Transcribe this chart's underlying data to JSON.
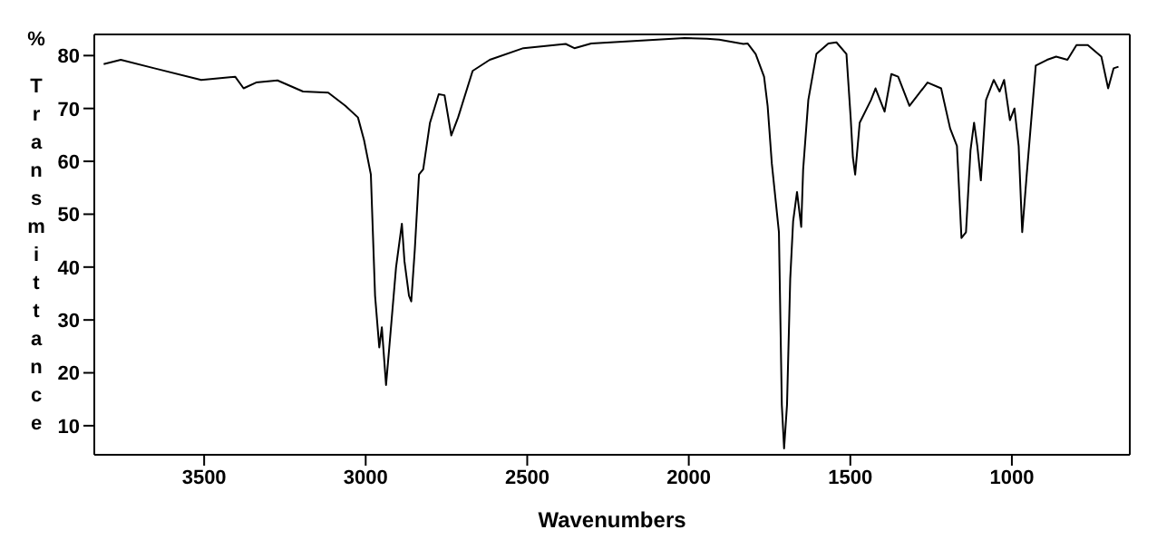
{
  "chart_data": {
    "type": "line",
    "xlabel": "Wavenumbers",
    "ylabel": "% Transmittance",
    "x": [
      3811,
      3758,
      3654,
      3509,
      3404,
      3378,
      3339,
      3273,
      3194,
      3116,
      3063,
      3024,
      3005,
      2984,
      2971,
      2958,
      2950,
      2937,
      2927,
      2906,
      2888,
      2880,
      2866,
      2859,
      2848,
      2835,
      2822,
      2801,
      2774,
      2756,
      2735,
      2714,
      2669,
      2616,
      2512,
      2381,
      2354,
      2302,
      2013,
      1944,
      1906,
      1831,
      1818,
      1793,
      1767,
      1756,
      1743,
      1721,
      1712,
      1705,
      1696,
      1686,
      1677,
      1665,
      1652,
      1646,
      1630,
      1605,
      1568,
      1543,
      1512,
      1499,
      1492,
      1485,
      1471,
      1436,
      1422,
      1394,
      1373,
      1352,
      1317,
      1261,
      1219,
      1191,
      1170,
      1156,
      1142,
      1128,
      1117,
      1107,
      1096,
      1080,
      1056,
      1038,
      1024,
      1006,
      992,
      979,
      968,
      954,
      926,
      891,
      863,
      828,
      800,
      765,
      723,
      702,
      685,
      670
    ],
    "series": [
      {
        "color": "#000000",
        "values": [
          78.4,
          79.2,
          77.6,
          75.4,
          76,
          73.8,
          74.9,
          75.3,
          73.2,
          73,
          70.5,
          68.3,
          64,
          57.5,
          34.6,
          24.8,
          28.6,
          17.7,
          24.8,
          40,
          48.2,
          41.1,
          34.6,
          33.5,
          43.3,
          57.5,
          58.5,
          67.3,
          72.7,
          72.5,
          64.9,
          68.3,
          77.1,
          79.2,
          81.4,
          82.2,
          81.4,
          82.3,
          83.3,
          83.2,
          83,
          82.2,
          82.3,
          80.3,
          76,
          70.5,
          59.6,
          46.6,
          13.9,
          5.7,
          13.9,
          37.8,
          48.7,
          54.2,
          47.6,
          58.5,
          71.6,
          80.3,
          82.3,
          82.5,
          80.3,
          68.3,
          60.7,
          57.5,
          67.3,
          71.6,
          73.8,
          69.4,
          76.5,
          76,
          70.5,
          74.9,
          73.8,
          66.2,
          62.9,
          45.5,
          46.6,
          62.1,
          67.3,
          62.9,
          56.4,
          71.6,
          75.4,
          73.2,
          75.4,
          67.8,
          70,
          62.9,
          46.6,
          57.5,
          78.1,
          79.2,
          79.8,
          79.2,
          82,
          82,
          79.8,
          73.8,
          77.6,
          77.9
        ]
      }
    ],
    "xlim": [
      3840,
      635
    ],
    "xticks": [
      3500,
      3000,
      2500,
      2000,
      1500,
      1000
    ],
    "ylim": [
      4.5,
      84
    ],
    "yticks": [
      10,
      20,
      30,
      40,
      50,
      60,
      70,
      80
    ],
    "grid": false,
    "legend": false,
    "marker": "none",
    "line_style": "solid"
  }
}
